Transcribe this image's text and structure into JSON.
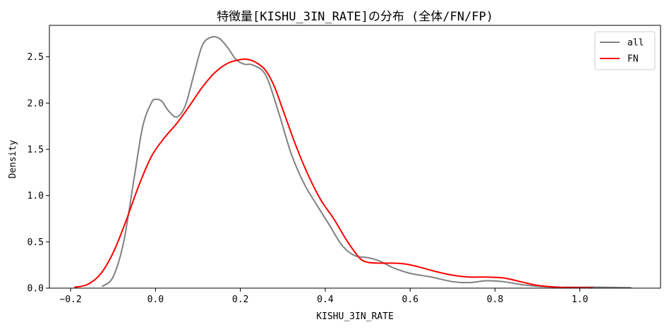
{
  "chart_data": {
    "type": "line",
    "title": "特徴量[KISHU_3IN_RATE]の分布 (全体/FN/FP)",
    "xlabel": "KISHU_3IN_RATE",
    "ylabel": "Density",
    "xlim": [
      -0.25,
      1.19
    ],
    "ylim": [
      0,
      2.84
    ],
    "xticks": [
      -0.2,
      0.0,
      0.2,
      0.4,
      0.6,
      0.8,
      1.0
    ],
    "xtick_labels": [
      "−0.2",
      "0.0",
      "0.2",
      "0.4",
      "0.6",
      "0.8",
      "1.0"
    ],
    "yticks": [
      0.0,
      0.5,
      1.0,
      1.5,
      2.0,
      2.5
    ],
    "ytick_labels": [
      "0.0",
      "0.5",
      "1.0",
      "1.5",
      "2.0",
      "2.5"
    ],
    "grid": false,
    "legend_position": "top-right",
    "series": [
      {
        "name": "all",
        "color": "#808080",
        "x": [
          -0.125,
          -0.1,
          -0.075,
          -0.05,
          -0.03,
          -0.01,
          0.0,
          0.015,
          0.03,
          0.05,
          0.07,
          0.09,
          0.11,
          0.13,
          0.15,
          0.17,
          0.19,
          0.21,
          0.23,
          0.26,
          0.29,
          0.32,
          0.35,
          0.38,
          0.41,
          0.44,
          0.47,
          0.5,
          0.53,
          0.56,
          0.6,
          0.65,
          0.7,
          0.74,
          0.78,
          0.82,
          0.86,
          0.9,
          0.95,
          1.0,
          1.05,
          1.12
        ],
        "y": [
          0.02,
          0.12,
          0.5,
          1.2,
          1.75,
          2.0,
          2.04,
          2.02,
          1.92,
          1.85,
          1.97,
          2.3,
          2.62,
          2.71,
          2.7,
          2.6,
          2.47,
          2.42,
          2.41,
          2.3,
          1.9,
          1.45,
          1.13,
          0.9,
          0.68,
          0.46,
          0.35,
          0.33,
          0.29,
          0.22,
          0.16,
          0.12,
          0.07,
          0.06,
          0.08,
          0.07,
          0.04,
          0.02,
          0.01,
          0.01,
          0.01,
          0.005
        ]
      },
      {
        "name": "FN",
        "color": "#ff0000",
        "x": [
          -0.19,
          -0.16,
          -0.13,
          -0.1,
          -0.07,
          -0.04,
          -0.01,
          0.02,
          0.05,
          0.08,
          0.11,
          0.14,
          0.17,
          0.2,
          0.22,
          0.24,
          0.26,
          0.28,
          0.3,
          0.33,
          0.36,
          0.39,
          0.42,
          0.45,
          0.48,
          0.5,
          0.53,
          0.56,
          0.59,
          0.62,
          0.66,
          0.7,
          0.74,
          0.78,
          0.82,
          0.86,
          0.9,
          0.95,
          1.0,
          1.03
        ],
        "y": [
          0.01,
          0.04,
          0.15,
          0.38,
          0.72,
          1.1,
          1.42,
          1.62,
          1.78,
          1.97,
          2.17,
          2.33,
          2.43,
          2.47,
          2.47,
          2.43,
          2.35,
          2.18,
          1.93,
          1.55,
          1.22,
          0.95,
          0.75,
          0.52,
          0.33,
          0.28,
          0.27,
          0.27,
          0.26,
          0.23,
          0.18,
          0.14,
          0.12,
          0.12,
          0.11,
          0.07,
          0.03,
          0.01,
          0.005,
          0.003
        ]
      }
    ]
  }
}
